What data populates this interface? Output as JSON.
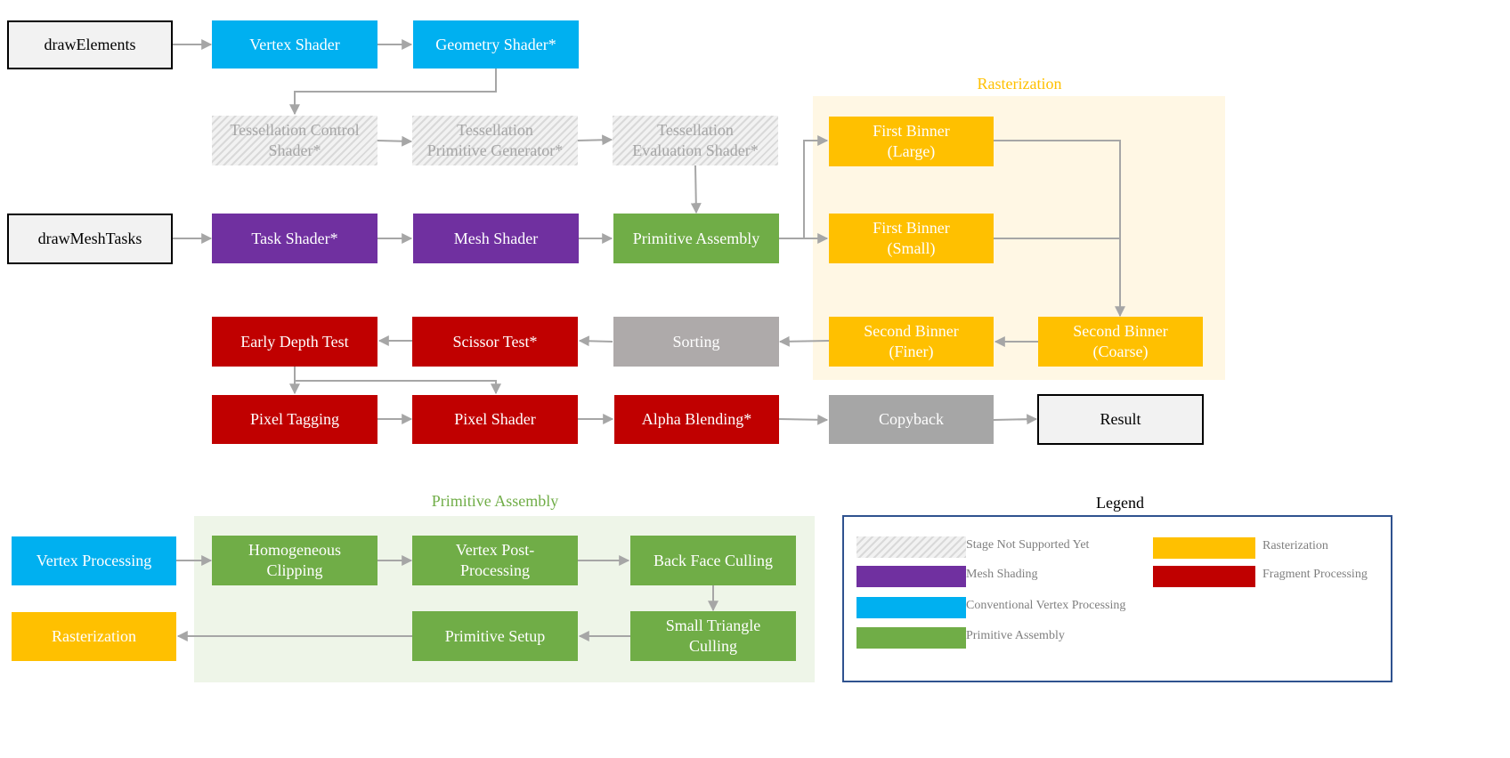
{
  "colors": {
    "conventional_vertex": "#00b0f0",
    "mesh_shading": "#7030a0",
    "primitive_assembly": "#70ad47",
    "rasterization": "#ffc000",
    "fragment_processing": "#c00000",
    "arrow": "#a6a6a6",
    "legend_border": "#2f528f"
  },
  "nodes": {
    "draw_elements": "drawElements",
    "vertex_shader": "Vertex Shader",
    "geometry_shader": "Geometry Shader*",
    "tess_control": "Tessellation Control\nShader*",
    "tess_primgen": "Tessellation\nPrimitive Generator*",
    "tess_eval": "Tessellation\nEvaluation Shader*",
    "draw_mesh_tasks": "drawMeshTasks",
    "task_shader": "Task Shader*",
    "mesh_shader": "Mesh Shader",
    "primitive_assembly": "Primitive Assembly",
    "first_binner_large": "First Binner\n(Large)",
    "first_binner_small": "First Binner\n(Small)",
    "second_binner_finer": "Second Binner\n(Finer)",
    "second_binner_coarse": "Second Binner\n(Coarse)",
    "sorting": "Sorting",
    "scissor_test": "Scissor Test*",
    "early_depth_test": "Early Depth Test",
    "pixel_tagging": "Pixel Tagging",
    "pixel_shader": "Pixel Shader",
    "alpha_blending": "Alpha Blending*",
    "copyback": "Copyback",
    "result": "Result"
  },
  "regions": {
    "rasterization_title": "Rasterization",
    "primitive_assembly_title": "Primitive Assembly"
  },
  "pa_detail": {
    "vertex_processing": "Vertex Processing",
    "rasterization": "Rasterization",
    "homogeneous_clipping": "Homogeneous\nClipping",
    "vertex_post_processing": "Vertex Post-\nProcessing",
    "back_face_culling": "Back Face Culling",
    "small_triangle_culling": "Small Triangle\nCulling",
    "primitive_setup": "Primitive Setup"
  },
  "legend": {
    "title": "Legend",
    "items": {
      "not_supported": "Stage Not Supported Yet",
      "mesh_shading": "Mesh Shading",
      "conventional_vertex": "Conventional Vertex Processing",
      "primitive_assembly": "Primitive Assembly",
      "rasterization": "Rasterization",
      "fragment_processing": "Fragment Processing"
    }
  }
}
